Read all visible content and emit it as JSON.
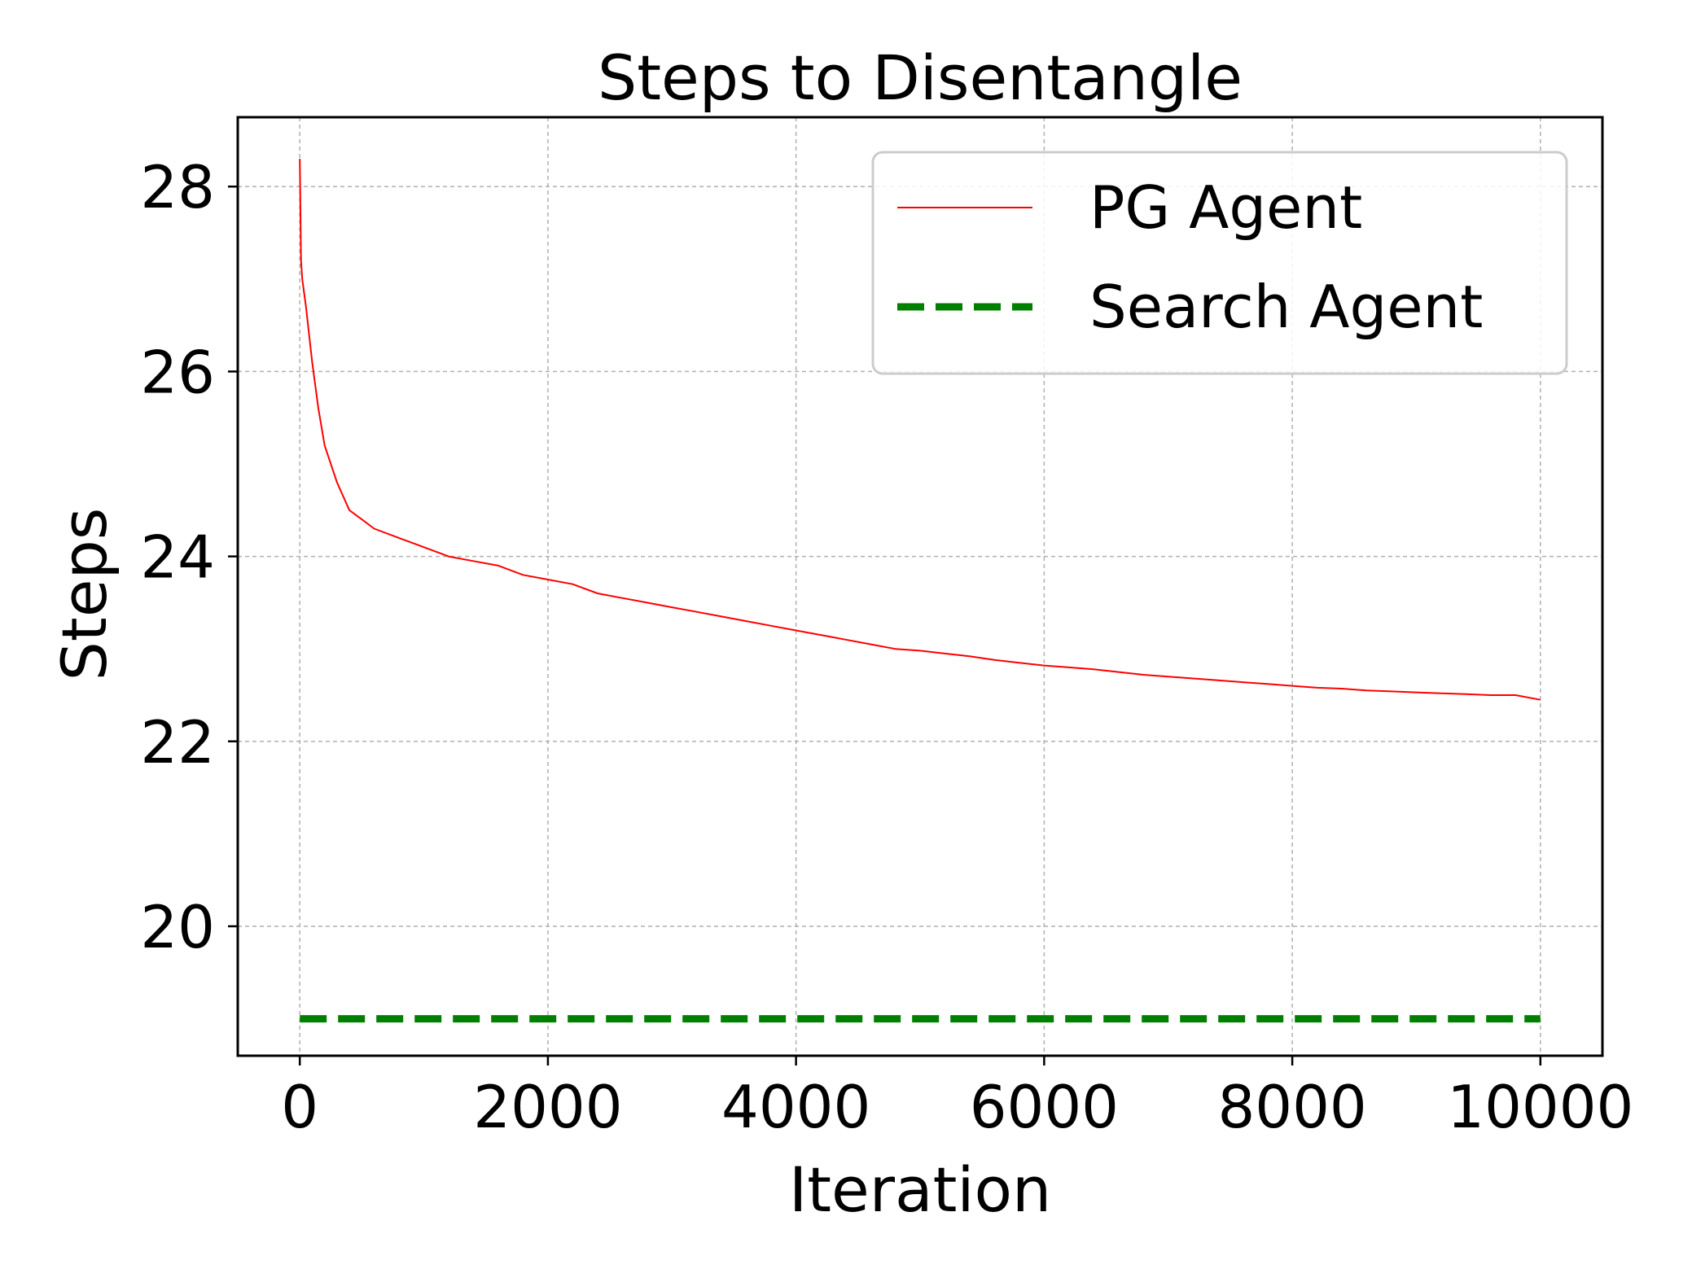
{
  "chart_data": {
    "type": "line",
    "title": "Steps to Disentangle",
    "xlabel": "Iteration",
    "ylabel": "Steps",
    "xlim": [
      -500,
      10500
    ],
    "ylim": [
      18.6,
      28.75
    ],
    "xticks": [
      0,
      2000,
      4000,
      6000,
      8000,
      10000
    ],
    "yticks": [
      20,
      22,
      24,
      26,
      28
    ],
    "grid": true,
    "legend_position": "top-right",
    "series": [
      {
        "name": "PG Agent",
        "color": "#ff0000",
        "style": "solid",
        "x": [
          0,
          10,
          20,
          50,
          100,
          150,
          200,
          300,
          400,
          500,
          600,
          800,
          1000,
          1200,
          1400,
          1600,
          1800,
          2000,
          2200,
          2400,
          2600,
          2800,
          3000,
          3200,
          3400,
          3600,
          3800,
          4000,
          4200,
          4400,
          4600,
          4800,
          5000,
          5200,
          5400,
          5600,
          5800,
          6000,
          6200,
          6400,
          6600,
          6800,
          7000,
          7200,
          7400,
          7600,
          7800,
          8000,
          8200,
          8400,
          8600,
          8800,
          9000,
          9200,
          9400,
          9600,
          9800,
          10000
        ],
        "y": [
          28.3,
          27.2,
          27.0,
          26.7,
          26.1,
          25.6,
          25.2,
          24.8,
          24.5,
          24.4,
          24.3,
          24.2,
          24.1,
          24.0,
          23.95,
          23.9,
          23.8,
          23.75,
          23.7,
          23.6,
          23.55,
          23.5,
          23.45,
          23.4,
          23.35,
          23.3,
          23.25,
          23.2,
          23.15,
          23.1,
          23.05,
          23.0,
          22.98,
          22.95,
          22.92,
          22.88,
          22.85,
          22.82,
          22.8,
          22.78,
          22.75,
          22.72,
          22.7,
          22.68,
          22.66,
          22.64,
          22.62,
          22.6,
          22.58,
          22.57,
          22.55,
          22.54,
          22.53,
          22.52,
          22.51,
          22.5,
          22.5,
          22.45
        ]
      },
      {
        "name": "Search Agent",
        "color": "#008000",
        "style": "dashed",
        "x": [
          0,
          10000
        ],
        "y": [
          19.0,
          19.0
        ]
      }
    ]
  }
}
